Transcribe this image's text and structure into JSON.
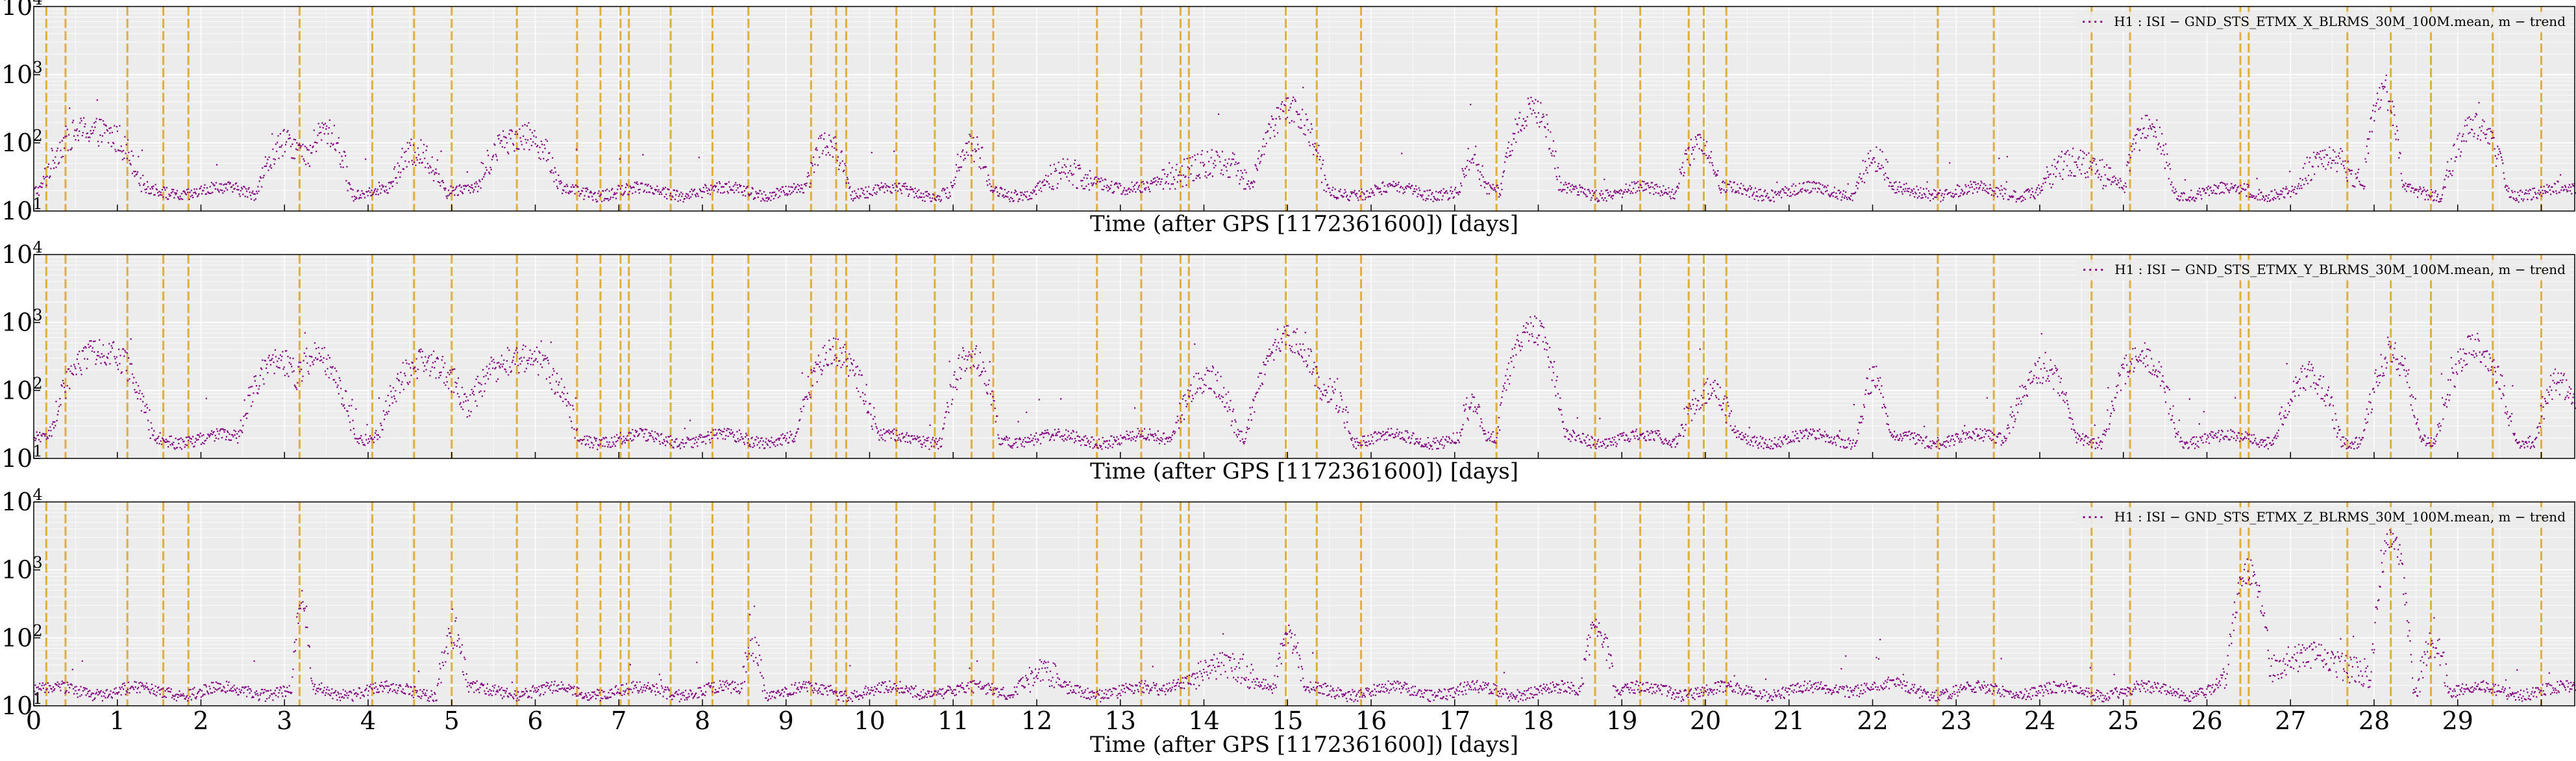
{
  "chart_data": [
    {
      "type": "scatter",
      "legend": "H1 : ISI − GND_STS_ETMX_X_BLRMS_30M_100M.mean, m − trend",
      "legend_position": "top-right",
      "xlabel": "Time (after GPS [1172361600]) [days]",
      "ylabel": "",
      "yscale": "log",
      "ylim": [
        10,
        10000
      ],
      "xlim": [
        0,
        30.4
      ],
      "y_ticks": [
        {
          "base": "10",
          "exp": "1"
        },
        {
          "base": "10",
          "exp": "2"
        },
        {
          "base": "10",
          "exp": "3"
        },
        {
          "base": "10",
          "exp": "4"
        }
      ],
      "grid": true,
      "series_color": "#800080",
      "baseline": 20,
      "features": [
        [
          0.7,
          180,
          0.3
        ],
        [
          3.0,
          100,
          0.2
        ],
        [
          3.5,
          150,
          0.15
        ],
        [
          4.6,
          80,
          0.2
        ],
        [
          5.8,
          150,
          0.25
        ],
        [
          9.5,
          100,
          0.15
        ],
        [
          11.2,
          80,
          0.15
        ],
        [
          12.5,
          35,
          0.5
        ],
        [
          14.0,
          50,
          0.5
        ],
        [
          15.0,
          300,
          0.2
        ],
        [
          17.2,
          60,
          0.1
        ],
        [
          17.9,
          350,
          0.15
        ],
        [
          19.9,
          100,
          0.15
        ],
        [
          22.0,
          60,
          0.15
        ],
        [
          24.5,
          50,
          0.4
        ],
        [
          25.3,
          150,
          0.15
        ],
        [
          27.5,
          60,
          0.3
        ],
        [
          28.1,
          500,
          0.1
        ],
        [
          29.2,
          150,
          0.2
        ]
      ]
    },
    {
      "type": "scatter",
      "legend": "H1 : ISI − GND_STS_ETMX_Y_BLRMS_30M_100M.mean, m − trend",
      "legend_position": "top-right",
      "xlabel": "Time (after GPS [1172361600]) [days]",
      "ylabel": "",
      "yscale": "log",
      "ylim": [
        10,
        10000
      ],
      "xlim": [
        0,
        30.4
      ],
      "y_ticks": [
        {
          "base": "10",
          "exp": "1"
        },
        {
          "base": "10",
          "exp": "2"
        },
        {
          "base": "10",
          "exp": "3"
        },
        {
          "base": "10",
          "exp": "4"
        }
      ],
      "grid": true,
      "series_color": "#800080",
      "baseline": 20,
      "features": [
        [
          0.8,
          450,
          0.25
        ],
        [
          2.9,
          300,
          0.2
        ],
        [
          3.4,
          300,
          0.2
        ],
        [
          4.7,
          300,
          0.25
        ],
        [
          5.8,
          350,
          0.3
        ],
        [
          9.6,
          400,
          0.2
        ],
        [
          11.2,
          300,
          0.15
        ],
        [
          14.0,
          150,
          0.2
        ],
        [
          15.0,
          600,
          0.2
        ],
        [
          15.5,
          100,
          0.15
        ],
        [
          17.2,
          60,
          0.1
        ],
        [
          17.9,
          900,
          0.15
        ],
        [
          20.0,
          100,
          0.2
        ],
        [
          22.0,
          150,
          0.1
        ],
        [
          24.0,
          200,
          0.2
        ],
        [
          25.2,
          300,
          0.2
        ],
        [
          27.2,
          150,
          0.2
        ],
        [
          28.2,
          300,
          0.15
        ],
        [
          29.2,
          400,
          0.2
        ],
        [
          30.2,
          120,
          0.15
        ]
      ]
    },
    {
      "type": "scatter",
      "legend": "H1 : ISI − GND_STS_ETMX_Z_BLRMS_30M_100M.mean, m − trend",
      "legend_position": "top-right",
      "xlabel": "Time (after GPS [1172361600]) [days]",
      "ylabel": "",
      "yscale": "log",
      "ylim": [
        10,
        10000
      ],
      "xlim": [
        0,
        30.4
      ],
      "x_ticks": [
        "0",
        "1",
        "2",
        "3",
        "4",
        "5",
        "6",
        "7",
        "8",
        "9",
        "10",
        "11",
        "12",
        "13",
        "14",
        "15",
        "16",
        "17",
        "18",
        "19",
        "20",
        "21",
        "22",
        "23",
        "24",
        "25",
        "26",
        "27",
        "28",
        "29"
      ],
      "y_ticks": [
        {
          "base": "10",
          "exp": "1"
        },
        {
          "base": "10",
          "exp": "2"
        },
        {
          "base": "10",
          "exp": "3"
        },
        {
          "base": "10",
          "exp": "4"
        }
      ],
      "grid": true,
      "series_color": "#800080",
      "baseline": 17,
      "features": [
        [
          3.2,
          300,
          0.05
        ],
        [
          5.0,
          100,
          0.1
        ],
        [
          8.6,
          80,
          0.08
        ],
        [
          12.0,
          30,
          0.3
        ],
        [
          14.2,
          35,
          0.6
        ],
        [
          15.0,
          100,
          0.1
        ],
        [
          18.7,
          150,
          0.1
        ],
        [
          22.0,
          20,
          1.0
        ],
        [
          26.5,
          1000,
          0.1
        ],
        [
          27.2,
          50,
          0.8
        ],
        [
          28.2,
          3000,
          0.08
        ],
        [
          28.7,
          100,
          0.1
        ]
      ]
    }
  ],
  "event_lines": [
    0.15,
    0.38,
    1.12,
    1.55,
    1.85,
    3.18,
    4.05,
    4.55,
    5.0,
    5.78,
    6.5,
    6.78,
    7.02,
    7.12,
    7.62,
    8.12,
    8.55,
    9.3,
    9.6,
    9.72,
    10.32,
    10.78,
    11.22,
    11.48,
    12.72,
    13.25,
    13.72,
    13.82,
    14.98,
    15.35,
    15.88,
    17.5,
    18.68,
    19.22,
    19.8,
    19.98,
    20.25,
    22.78,
    23.45,
    24.62,
    25.08,
    26.4,
    26.5,
    27.68,
    28.2,
    28.68,
    29.42,
    30.0
  ],
  "event_line_color": "#DAA520"
}
